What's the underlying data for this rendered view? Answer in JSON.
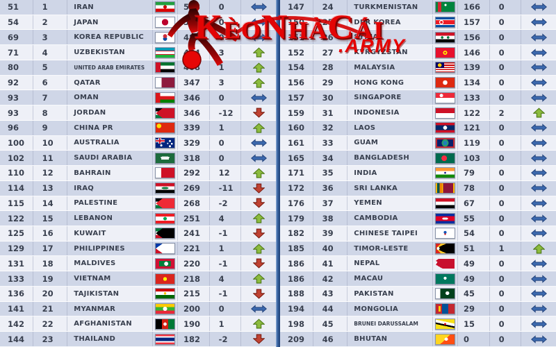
{
  "watermark": {
    "text": "KèoNhàCái",
    "suffix": ".ARMY",
    "color": "#e30505"
  },
  "colors": {
    "row_dark": "#cfd6e7",
    "row_light": "#eef0f7",
    "text": "#39404f",
    "divider_blue": "#3a66a5",
    "arrow_up": "#8cbb3e",
    "arrow_up_edge": "#4f7a18",
    "arrow_down": "#c04232",
    "arrow_down_edge": "#7d1f14",
    "arrow_same": "#3c69ae",
    "arrow_same_edge": "#24457e",
    "watermark_red": "#e60000"
  },
  "tables": [
    {
      "side": "left",
      "rows": [
        {
          "world_rank": "51",
          "afc_rank": "1",
          "country": "IRAN",
          "flag": "ir",
          "points": "528",
          "change": "0",
          "trend": "same"
        },
        {
          "world_rank": "54",
          "afc_rank": "2",
          "country": "JAPAN",
          "flag": "jp",
          "points": "503",
          "change": "0",
          "trend": "same"
        },
        {
          "world_rank": "69",
          "afc_rank": "3",
          "country": "KOREA REPUBLIC",
          "flag": "kr",
          "points": "487",
          "change": "0",
          "trend": "same"
        },
        {
          "world_rank": "71",
          "afc_rank": "4",
          "country": "UZBEKISTAN",
          "flag": "uz",
          "points": "464",
          "change": "3",
          "trend": "up"
        },
        {
          "world_rank": "80",
          "afc_rank": "5",
          "country": "UNITED ARAB EMIRATES",
          "flag": "ae",
          "points": "408",
          "change": "1",
          "trend": "up"
        },
        {
          "world_rank": "92",
          "afc_rank": "6",
          "country": "QATAR",
          "flag": "qa",
          "points": "347",
          "change": "3",
          "trend": "up"
        },
        {
          "world_rank": "93",
          "afc_rank": "7",
          "country": "OMAN",
          "flag": "om",
          "points": "346",
          "change": "0",
          "trend": "same"
        },
        {
          "world_rank": "93",
          "afc_rank": "8",
          "country": "JORDAN",
          "flag": "jo",
          "points": "346",
          "change": "-12",
          "trend": "down"
        },
        {
          "world_rank": "96",
          "afc_rank": "9",
          "country": "CHINA PR",
          "flag": "cn",
          "points": "339",
          "change": "1",
          "trend": "up"
        },
        {
          "world_rank": "100",
          "afc_rank": "10",
          "country": "AUSTRALIA",
          "flag": "au",
          "points": "329",
          "change": "0",
          "trend": "same"
        },
        {
          "world_rank": "102",
          "afc_rank": "11",
          "country": "SAUDI ARABIA",
          "flag": "sa",
          "points": "318",
          "change": "0",
          "trend": "same"
        },
        {
          "world_rank": "110",
          "afc_rank": "12",
          "country": "BAHRAIN",
          "flag": "bh",
          "points": "292",
          "change": "12",
          "trend": "up"
        },
        {
          "world_rank": "114",
          "afc_rank": "13",
          "country": "IRAQ",
          "flag": "iq",
          "points": "269",
          "change": "-11",
          "trend": "down"
        },
        {
          "world_rank": "115",
          "afc_rank": "14",
          "country": "PALESTINE",
          "flag": "ps",
          "points": "268",
          "change": "-2",
          "trend": "down"
        },
        {
          "world_rank": "122",
          "afc_rank": "15",
          "country": "LEBANON",
          "flag": "lb",
          "points": "251",
          "change": "4",
          "trend": "up"
        },
        {
          "world_rank": "125",
          "afc_rank": "16",
          "country": "KUWAIT",
          "flag": "kw",
          "points": "241",
          "change": "-1",
          "trend": "down"
        },
        {
          "world_rank": "129",
          "afc_rank": "17",
          "country": "PHILIPPINES",
          "flag": "ph",
          "points": "221",
          "change": "1",
          "trend": "up"
        },
        {
          "world_rank": "131",
          "afc_rank": "18",
          "country": "MALDIVES",
          "flag": "mv",
          "points": "220",
          "change": "-1",
          "trend": "down"
        },
        {
          "world_rank": "133",
          "afc_rank": "19",
          "country": "VIETNAM",
          "flag": "vn",
          "points": "218",
          "change": "4",
          "trend": "up"
        },
        {
          "world_rank": "136",
          "afc_rank": "20",
          "country": "TAJIKISTAN",
          "flag": "tj",
          "points": "215",
          "change": "-1",
          "trend": "down"
        },
        {
          "world_rank": "141",
          "afc_rank": "21",
          "country": "MYANMAR",
          "flag": "mm",
          "points": "200",
          "change": "0",
          "trend": "same"
        },
        {
          "world_rank": "142",
          "afc_rank": "22",
          "country": "AFGHANISTAN",
          "flag": "af",
          "points": "190",
          "change": "1",
          "trend": "up"
        },
        {
          "world_rank": "144",
          "afc_rank": "23",
          "country": "THAILAND",
          "flag": "th",
          "points": "182",
          "change": "-2",
          "trend": "down"
        }
      ]
    },
    {
      "side": "right",
      "rows": [
        {
          "world_rank": "147",
          "afc_rank": "24",
          "country": "TURKMENISTAN",
          "flag": "tm",
          "points": "166",
          "change": "0",
          "trend": "same"
        },
        {
          "world_rank": "150",
          "afc_rank": "25",
          "country": "DPR KOREA",
          "flag": "kp",
          "points": "157",
          "change": "0",
          "trend": "same"
        },
        {
          "world_rank": "151",
          "afc_rank": "26",
          "country": "SYRIA",
          "flag": "sy",
          "points": "156",
          "change": "0",
          "trend": "same"
        },
        {
          "world_rank": "152",
          "afc_rank": "27",
          "country": "KYRGYZSTAN",
          "flag": "kg",
          "points": "146",
          "change": "0",
          "trend": "same"
        },
        {
          "world_rank": "154",
          "afc_rank": "28",
          "country": "MALAYSIA",
          "flag": "my",
          "points": "139",
          "change": "0",
          "trend": "same"
        },
        {
          "world_rank": "156",
          "afc_rank": "29",
          "country": "HONG KONG",
          "flag": "hk",
          "points": "134",
          "change": "0",
          "trend": "same"
        },
        {
          "world_rank": "157",
          "afc_rank": "30",
          "country": "SINGAPORE",
          "flag": "sg",
          "points": "133",
          "change": "0",
          "trend": "same"
        },
        {
          "world_rank": "159",
          "afc_rank": "31",
          "country": "INDONESIA",
          "flag": "id",
          "points": "122",
          "change": "2",
          "trend": "up"
        },
        {
          "world_rank": "160",
          "afc_rank": "32",
          "country": "LAOS",
          "flag": "la",
          "points": "121",
          "change": "0",
          "trend": "same"
        },
        {
          "world_rank": "161",
          "afc_rank": "33",
          "country": "GUAM",
          "flag": "gu",
          "points": "119",
          "change": "0",
          "trend": "same"
        },
        {
          "world_rank": "165",
          "afc_rank": "34",
          "country": "BANGLADESH",
          "flag": "bd",
          "points": "103",
          "change": "0",
          "trend": "same"
        },
        {
          "world_rank": "171",
          "afc_rank": "35",
          "country": "INDIA",
          "flag": "in",
          "points": "79",
          "change": "0",
          "trend": "same"
        },
        {
          "world_rank": "172",
          "afc_rank": "36",
          "country": "SRI LANKA",
          "flag": "lk",
          "points": "78",
          "change": "0",
          "trend": "same"
        },
        {
          "world_rank": "176",
          "afc_rank": "37",
          "country": "YEMEN",
          "flag": "ye",
          "points": "67",
          "change": "0",
          "trend": "same"
        },
        {
          "world_rank": "179",
          "afc_rank": "38",
          "country": "CAMBODIA",
          "flag": "kh",
          "points": "55",
          "change": "0",
          "trend": "same"
        },
        {
          "world_rank": "182",
          "afc_rank": "39",
          "country": "CHINESE TAIPEI",
          "flag": "tw",
          "points": "54",
          "change": "0",
          "trend": "same"
        },
        {
          "world_rank": "185",
          "afc_rank": "40",
          "country": "TIMOR-LESTE",
          "flag": "tl",
          "points": "51",
          "change": "1",
          "trend": "up"
        },
        {
          "world_rank": "186",
          "afc_rank": "41",
          "country": "NEPAL",
          "flag": "np",
          "points": "49",
          "change": "0",
          "trend": "same"
        },
        {
          "world_rank": "186",
          "afc_rank": "42",
          "country": "MACAU",
          "flag": "mo",
          "points": "49",
          "change": "0",
          "trend": "same"
        },
        {
          "world_rank": "188",
          "afc_rank": "43",
          "country": "PAKISTAN",
          "flag": "pk",
          "points": "45",
          "change": "0",
          "trend": "same"
        },
        {
          "world_rank": "194",
          "afc_rank": "44",
          "country": "MONGOLIA",
          "flag": "mn",
          "points": "29",
          "change": "0",
          "trend": "same"
        },
        {
          "world_rank": "198",
          "afc_rank": "45",
          "country": "BRUNEI DARUSSALAM",
          "flag": "bn",
          "points": "15",
          "change": "0",
          "trend": "same"
        },
        {
          "world_rank": "209",
          "afc_rank": "46",
          "country": "BHUTAN",
          "flag": "bt",
          "points": "0",
          "change": "0",
          "trend": "same"
        }
      ]
    }
  ]
}
